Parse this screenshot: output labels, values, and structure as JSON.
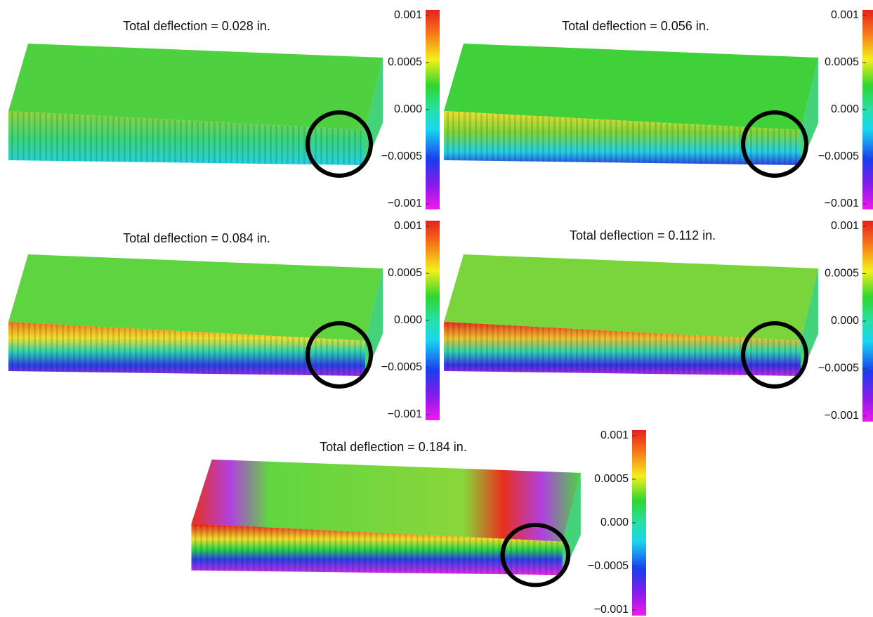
{
  "panels": [
    {
      "title": "Total deflection = 0.028 in.",
      "colorbar": {
        "lim": [
          -0.001,
          0.001
        ],
        "ticks": [
          0.001,
          0.0005,
          {
            "value": 0,
            "label": "0.000"
          },
          {
            "value": -0.0005,
            "label": "−0.0005"
          },
          {
            "value": -0.001,
            "label": "−0.001"
          }
        ]
      }
    },
    {
      "title": "Total deflection = 0.056 in.",
      "colorbar": {
        "lim": [
          -0.001,
          0.001
        ],
        "ticks": [
          0.001,
          0.0005,
          {
            "value": 0,
            "label": "0.000"
          },
          {
            "value": -0.0005,
            "label": "−0.0005"
          },
          {
            "value": -0.001,
            "label": "−0.001"
          }
        ]
      }
    },
    {
      "title": "Total deflection = 0.084 in.",
      "colorbar": {
        "lim": [
          -0.001,
          0.001
        ],
        "ticks": [
          0.001,
          0.0005,
          {
            "value": 0,
            "label": "0.000"
          },
          {
            "value": -0.0005,
            "label": "−0.0005"
          },
          {
            "value": -0.001,
            "label": "−0.001"
          }
        ]
      }
    },
    {
      "title": "Total deflection = 0.112 in.",
      "colorbar": {
        "lim": [
          -0.001,
          0.001
        ],
        "ticks": [
          0.001,
          0.0005,
          {
            "value": 0,
            "label": "0.000"
          },
          {
            "value": -0.0005,
            "label": "−0.0005"
          },
          {
            "value": -0.001,
            "label": "−0.001"
          }
        ]
      }
    },
    {
      "title": "Total deflection = 0.184 in.",
      "colorbar": {
        "lim": [
          -0.001,
          0.001
        ],
        "ticks": [
          0.001,
          0.0005,
          {
            "value": 0,
            "label": "0.000"
          },
          {
            "value": -0.0005,
            "label": "−0.0005"
          },
          {
            "value": -0.001,
            "label": "−0.001"
          }
        ]
      }
    }
  ]
}
